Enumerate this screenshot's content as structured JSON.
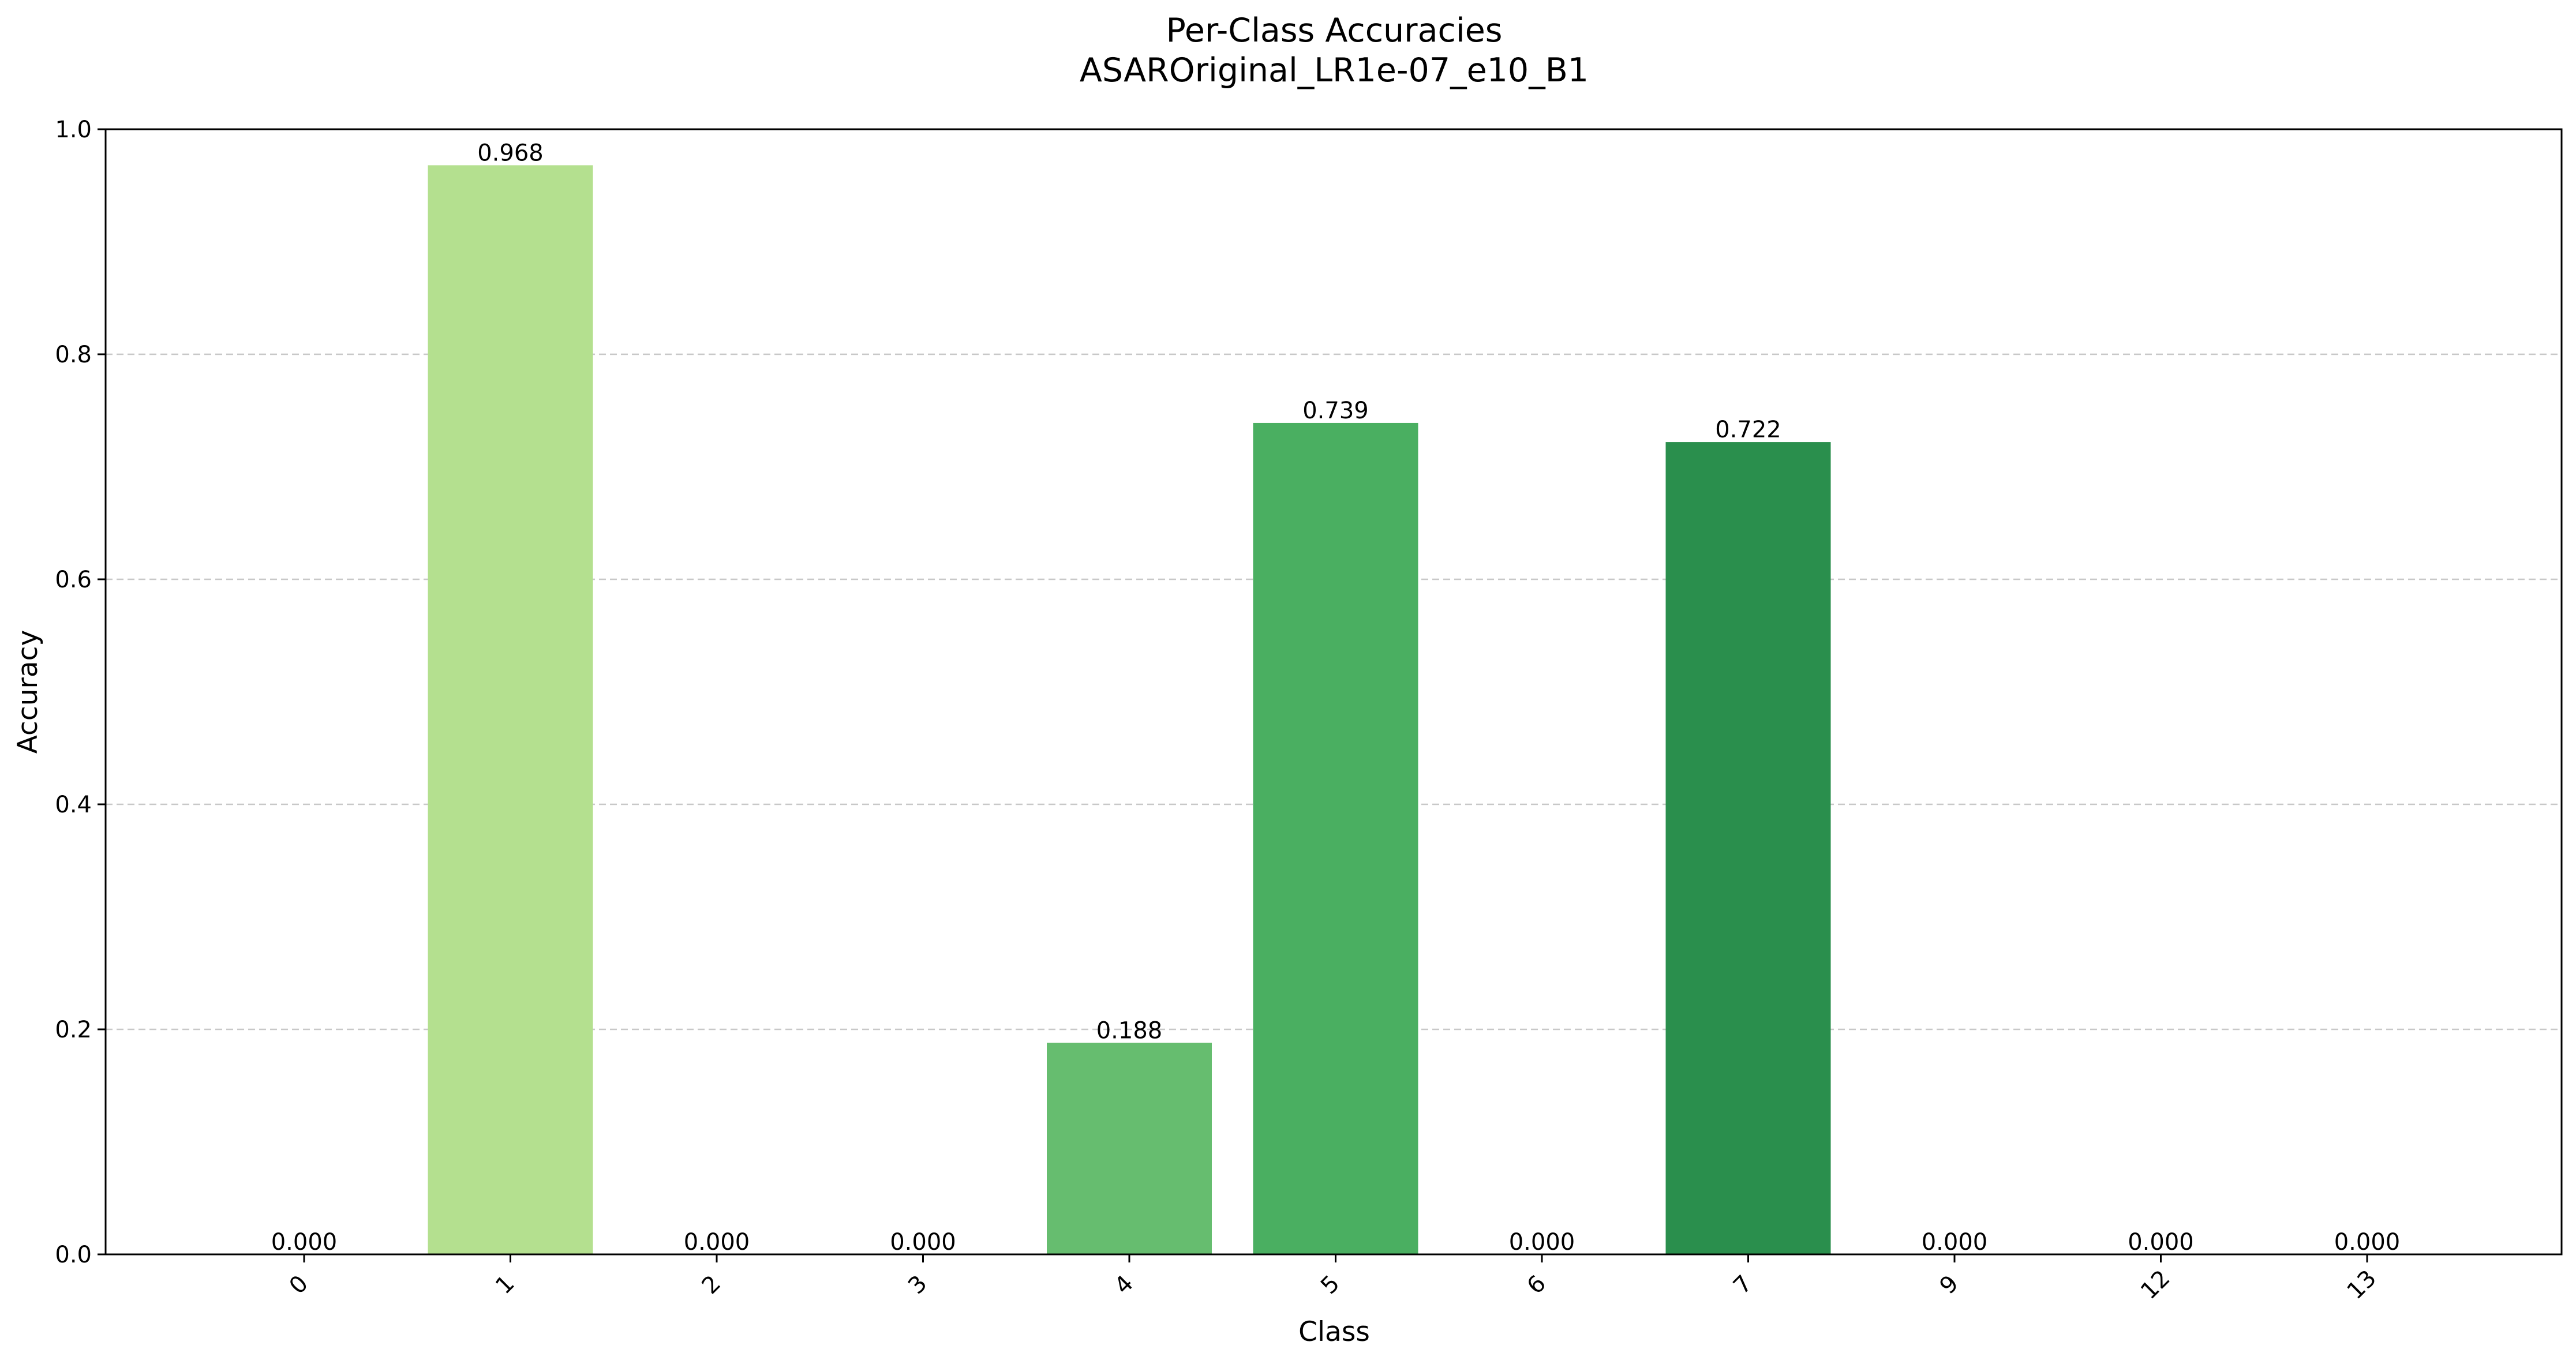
{
  "chart_data": {
    "type": "bar",
    "title": "Per-Class Accuracies",
    "subtitle": "ASAROriginal_LR1e-07_e10_B1",
    "xlabel": "Class",
    "ylabel": "Accuracy",
    "categories": [
      "0",
      "1",
      "2",
      "3",
      "4",
      "5",
      "6",
      "7",
      "9",
      "12",
      "13"
    ],
    "values": [
      0.0,
      0.968,
      0.0,
      0.0,
      0.188,
      0.739,
      0.0,
      0.722,
      0.0,
      0.0,
      0.0
    ],
    "value_labels": [
      "0.000",
      "0.968",
      "0.000",
      "0.000",
      "0.188",
      "0.739",
      "0.000",
      "0.722",
      "0.000",
      "0.000",
      "0.000"
    ],
    "bar_colors": [
      "#f7fcf5",
      "#b4e08f",
      "#90d17c",
      "#78c679",
      "#66bd6f",
      "#4aaf61",
      "#39994d",
      "#2a8f4d",
      "#1f7f3e",
      "#0c6f33",
      "#005a2a"
    ],
    "ylim": [
      0,
      1.0
    ],
    "yticks": [
      0.0,
      0.2,
      0.4,
      0.6,
      0.8,
      1.0
    ],
    "ytick_labels": [
      "0.0",
      "0.2",
      "0.4",
      "0.6",
      "0.8",
      "1.0"
    ],
    "grid": "y-dashed",
    "grid_color": "#c8c8c8",
    "legend": "none"
  }
}
